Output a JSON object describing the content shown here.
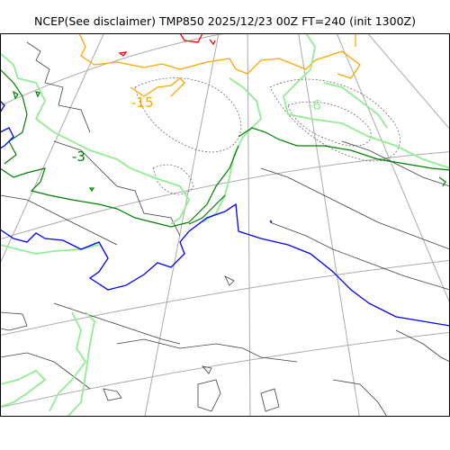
{
  "title": "NCEP(See disclaimer) TMP850 2025/12/23 00Z FT=240 (init 1300Z)",
  "map": {
    "type": "weather-contour-map",
    "variable": "TMP850",
    "contour_labels": [
      "-15",
      "-3",
      "-6"
    ],
    "colors": {
      "coast": "#404040",
      "grid": "#aaaaaa",
      "orange_contour": "#ffa500",
      "red_contour": "#ff0000",
      "lightgreen_contour": "#90ee90",
      "green_contour": "#008000",
      "blue_contour": "#0000ff",
      "dashed_contour": "#555555"
    }
  }
}
